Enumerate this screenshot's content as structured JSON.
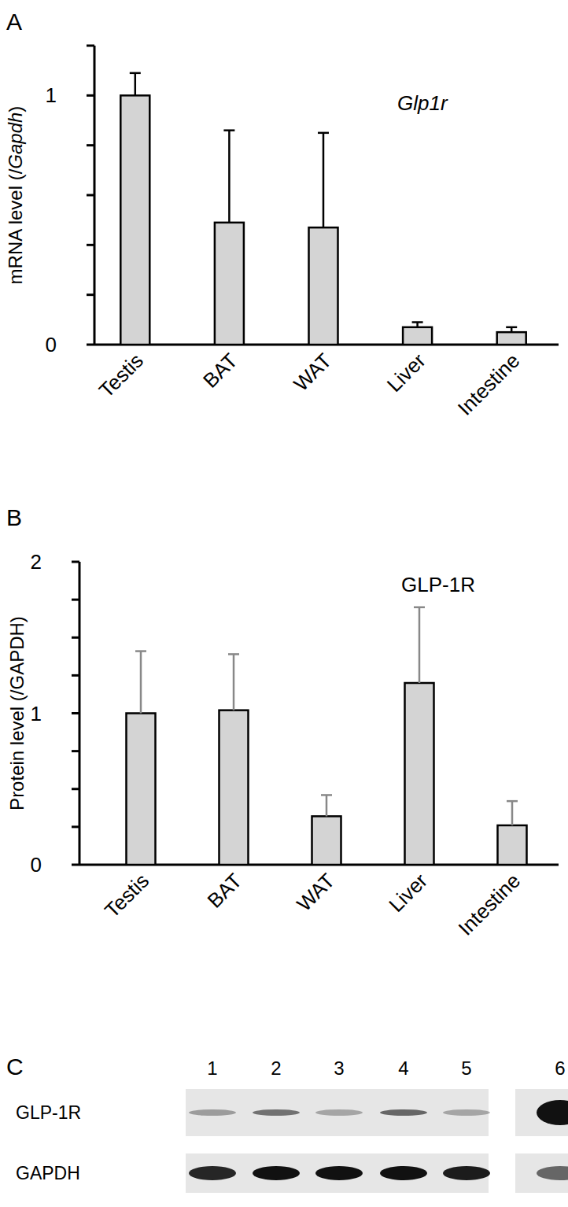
{
  "chart_data": [
    {
      "type": "bar",
      "panel_label": "A",
      "title": "Glp1r",
      "ylabel": "mRNA level (/Gapdh)",
      "categories": [
        "Testis",
        "BAT",
        "WAT",
        "Liver",
        "Intestine"
      ],
      "values": [
        1.0,
        0.49,
        0.47,
        0.07,
        0.05
      ],
      "errors": [
        0.09,
        0.37,
        0.38,
        0.02,
        0.02
      ],
      "color": "#d4d4d4",
      "ylim": [
        0,
        1.2
      ],
      "yticks": [
        0,
        1
      ],
      "yticks_minor": [
        0.2,
        0.4,
        0.6,
        0.8,
        1.2
      ]
    },
    {
      "type": "bar",
      "panel_label": "B",
      "title": "GLP-1R",
      "ylabel": "Protein level (/GAPDH)",
      "categories": [
        "Testis",
        "BAT",
        "WAT",
        "Liver",
        "Intestine"
      ],
      "values": [
        1.0,
        1.02,
        0.32,
        1.2,
        0.26
      ],
      "errors": [
        0.41,
        0.37,
        0.14,
        0.5,
        0.16
      ],
      "color": "#d4d4d4",
      "ylim": [
        0,
        2
      ],
      "yticks": [
        0,
        1,
        2
      ],
      "yticks_minor": [
        0.25,
        0.5,
        0.75,
        1.25,
        1.5,
        1.75
      ]
    }
  ],
  "blot": {
    "panel_label": "C",
    "lanes": [
      "1",
      "2",
      "3",
      "4",
      "5",
      "6"
    ],
    "rows": [
      {
        "label": "GLP-1R",
        "intensity": [
          0.35,
          0.55,
          0.3,
          0.6,
          0.3,
          1.0
        ]
      },
      {
        "label": "GAPDH",
        "intensity": [
          0.9,
          1.0,
          1.0,
          1.0,
          0.95,
          0.6
        ]
      }
    ]
  }
}
